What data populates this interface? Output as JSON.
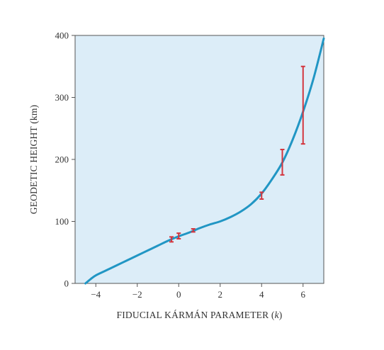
{
  "chart_data": {
    "type": "line",
    "title": "",
    "xlabel_main": "FIDUCIAL KÁRMÁN PARAMETER (",
    "xlabel_var": "k",
    "xlabel_close": ")",
    "ylabel": "GEODETIC HEIGHT (km)",
    "xlim": [
      -5,
      7
    ],
    "ylim": [
      0,
      400
    ],
    "xticks": [
      -4,
      -2,
      0,
      2,
      4,
      6
    ],
    "xtick_labels": [
      "−4",
      "−2",
      "0",
      "2",
      "4",
      "6"
    ],
    "yticks": [
      0,
      100,
      200,
      300,
      400
    ],
    "ytick_labels": [
      "0",
      "100",
      "200",
      "300",
      "400"
    ],
    "grid": false,
    "colors": {
      "plot_background": "#dcedf8",
      "curve": "#2196c4",
      "error_bars": "#d3363f",
      "axis": "#555555"
    },
    "series": [
      {
        "kind": "curve",
        "x": [
          -4.5,
          -4.25,
          -4,
          -3.5,
          -3,
          -2.5,
          -2,
          -1.5,
          -1,
          -0.5,
          0,
          0.5,
          1,
          1.5,
          2,
          2.5,
          3,
          3.5,
          4,
          4.5,
          5,
          5.5,
          6,
          6.5,
          7
        ],
        "y": [
          0,
          7,
          13,
          21,
          29,
          37,
          45,
          53,
          61,
          69,
          76,
          82,
          89,
          95,
          100,
          107,
          116,
          128,
          145,
          168,
          195,
          232,
          277,
          330,
          395
        ]
      },
      {
        "kind": "error_bars",
        "points": [
          {
            "x": -0.35,
            "y": 71,
            "ylow": 67,
            "yhigh": 75
          },
          {
            "x": 0.0,
            "y": 77,
            "ylow": 72,
            "yhigh": 81
          },
          {
            "x": 0.7,
            "y": 85,
            "ylow": 83,
            "yhigh": 88
          },
          {
            "x": 4.0,
            "y": 141,
            "ylow": 136,
            "yhigh": 147
          },
          {
            "x": 5.0,
            "y": 195,
            "ylow": 175,
            "yhigh": 216
          },
          {
            "x": 6.0,
            "y": 287,
            "ylow": 225,
            "yhigh": 350
          }
        ]
      }
    ]
  }
}
